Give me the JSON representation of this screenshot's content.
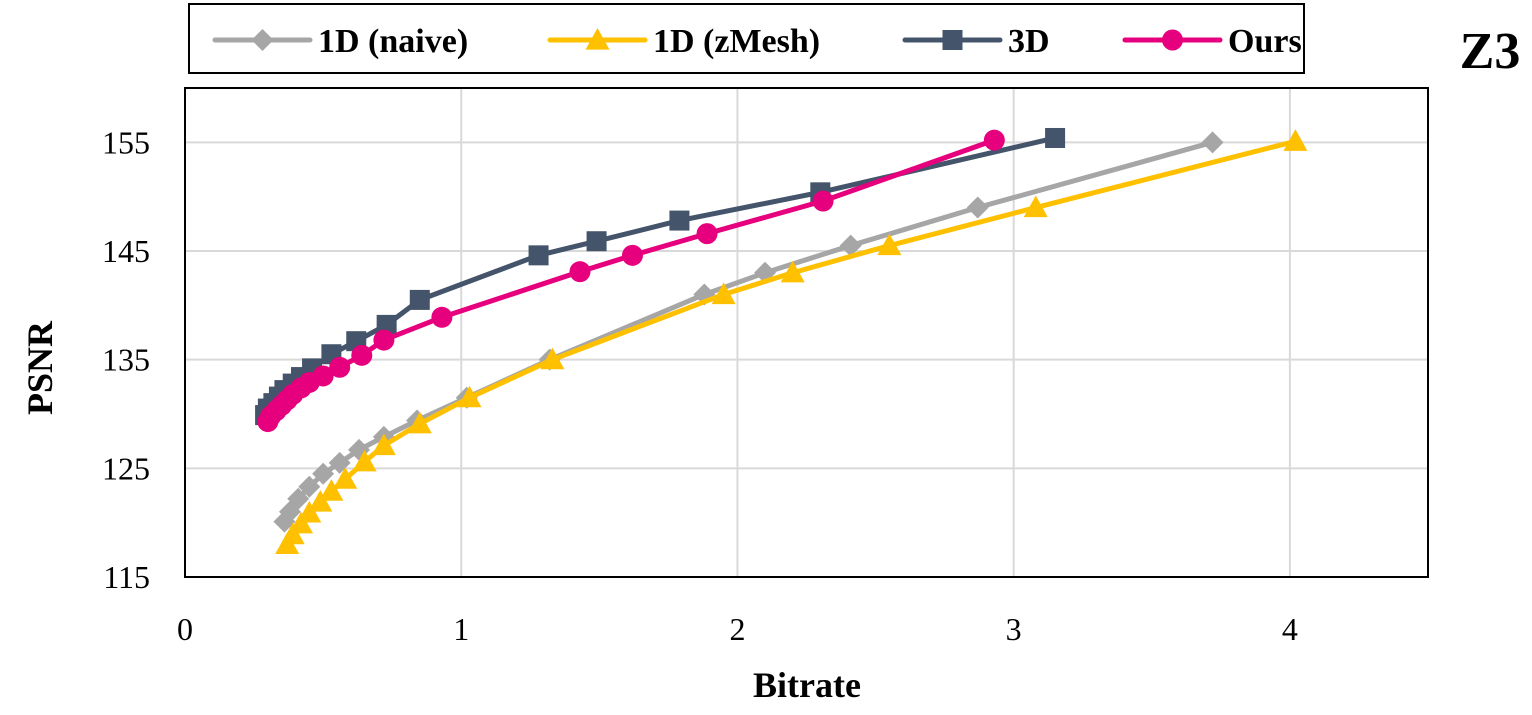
{
  "chart_data": {
    "type": "line",
    "title": "Z3",
    "xlabel": "Bitrate",
    "ylabel": "PSNR",
    "xlim": [
      0,
      4.5
    ],
    "ylim": [
      115,
      160
    ],
    "xticks": [
      0,
      1,
      2,
      3,
      4
    ],
    "yticks": [
      115,
      125,
      135,
      145,
      155
    ],
    "xtick_labels": [
      "0",
      "1",
      "2",
      "3",
      "4"
    ],
    "ytick_labels": [
      "115",
      "125",
      "135",
      "145",
      "155"
    ],
    "grid": true,
    "legend_position": "top",
    "series": [
      {
        "name": "1D (naive)",
        "color": "#a6a6a6",
        "marker": "diamond",
        "x": [
          0.36,
          0.38,
          0.41,
          0.45,
          0.5,
          0.56,
          0.63,
          0.72,
          0.84,
          1.02,
          1.32,
          1.88,
          2.1,
          2.41,
          2.87,
          3.72
        ],
        "y": [
          120.1,
          121,
          122.2,
          123.3,
          124.5,
          125.5,
          126.7,
          127.9,
          129.4,
          131.5,
          135,
          141,
          143,
          145.5,
          149,
          155
        ]
      },
      {
        "name": "1D (zMesh)",
        "color": "#ffc000",
        "marker": "triangle",
        "x": [
          0.37,
          0.39,
          0.42,
          0.45,
          0.49,
          0.53,
          0.58,
          0.65,
          0.72,
          0.85,
          1.03,
          1.33,
          1.95,
          2.2,
          2.55,
          3.08,
          4.02
        ],
        "y": [
          118,
          118.9,
          119.9,
          120.9,
          121.9,
          122.9,
          124,
          125.6,
          127.1,
          129.1,
          131.5,
          135,
          141,
          143,
          145.5,
          149,
          155.1
        ]
      },
      {
        "name": "3D",
        "color": "#44546a",
        "marker": "square",
        "x": [
          0.29,
          0.3,
          0.32,
          0.34,
          0.36,
          0.39,
          0.42,
          0.46,
          0.53,
          0.62,
          0.73,
          0.85,
          1.28,
          1.49,
          1.79,
          2.3,
          3.15
        ],
        "y": [
          129.9,
          130.5,
          131,
          131.6,
          132.2,
          132.8,
          133.4,
          134.2,
          135.5,
          136.7,
          138.2,
          140.5,
          144.6,
          145.9,
          147.8,
          150.4,
          155.4
        ]
      },
      {
        "name": "Ours",
        "color": "#e6007e",
        "marker": "circle",
        "x": [
          0.3,
          0.31,
          0.33,
          0.35,
          0.37,
          0.39,
          0.42,
          0.45,
          0.5,
          0.56,
          0.64,
          0.72,
          0.93,
          1.43,
          1.62,
          1.89,
          2.31,
          2.93
        ],
        "y": [
          129.3,
          129.8,
          130.3,
          130.8,
          131.3,
          131.8,
          132.4,
          132.9,
          133.5,
          134.3,
          135.4,
          136.8,
          138.9,
          143.1,
          144.6,
          146.6,
          149.6,
          155.2
        ]
      }
    ]
  }
}
